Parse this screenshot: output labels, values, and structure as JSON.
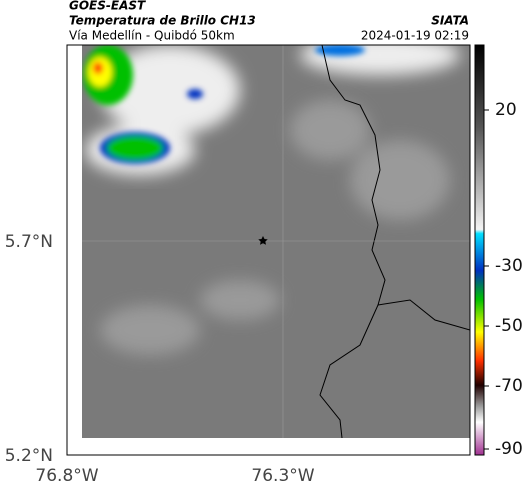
{
  "header": {
    "satellite": "GOES-EAST",
    "product": "Temperatura de Brillo CH13",
    "region": "Vía Medellín - Quibdó 50km",
    "source": "SIATA",
    "datetime": "2024-01-19 02:19"
  },
  "map": {
    "lat_labels": [
      "5.7°N",
      "5.2°N"
    ],
    "lon_labels": [
      "76.8°W",
      "76.3°W"
    ]
  },
  "colorbar": {
    "ticks": [
      20,
      -30,
      -50,
      -70,
      -90
    ]
  }
}
